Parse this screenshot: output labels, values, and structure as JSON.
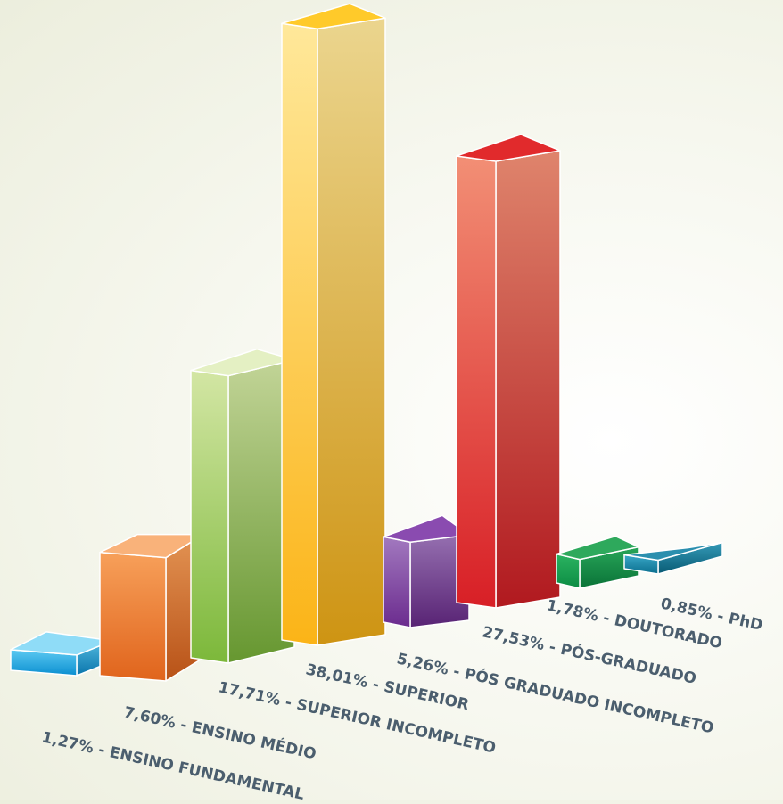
{
  "chart_data": {
    "type": "bar",
    "title": "",
    "xlabel": "",
    "ylabel": "",
    "legend": "none",
    "grid": false,
    "ylim": [
      0,
      40
    ],
    "categories": [
      "ENSINO FUNDAMENTAL",
      "ENSINO MÉDIO",
      "SUPERIOR INCOMPLETO",
      "SUPERIOR",
      "PÓS GRADUADO INCOMPLETO",
      "PÓS-GRADUADO",
      "DOUTORADO",
      "PhD"
    ],
    "values": [
      1.27,
      7.6,
      17.71,
      38.01,
      5.26,
      27.53,
      1.78,
      0.85
    ],
    "labels": [
      "1,27% - ENSINO FUNDAMENTAL",
      "7,60% - ENSINO MÉDIO",
      "17,71% - SUPERIOR INCOMPLETO",
      "38,01% - SUPERIOR",
      "5,26% - PÓS GRADUADO INCOMPLETO",
      "27,53% - PÓS-GRADUADO",
      "1,78% - DOUTORADO",
      "0,85% - PhD"
    ],
    "colors": [
      {
        "front_top": "#5ccaf2",
        "front_bottom": "#0a8ed0",
        "top": "#8fdcf7"
      },
      {
        "front_top": "#f7a05a",
        "front_bottom": "#e0641c",
        "top": "#f9b27a"
      },
      {
        "front_top": "#d3e6a4",
        "front_bottom": "#7cb83a",
        "top": "#e4f0c3"
      },
      {
        "front_top": "#ffe89a",
        "front_bottom": "#fbb417",
        "top": "#ffca2a"
      },
      {
        "front_top": "#a279bf",
        "front_bottom": "#6b2b8e",
        "top": "#8a4bb0"
      },
      {
        "front_top": "#f28f75",
        "front_bottom": "#d81f26",
        "top": "#e12a2c"
      },
      {
        "front_top": "#2bb361",
        "front_bottom": "#0c8c43",
        "top": "#2ea95c"
      },
      {
        "front_top": "#3aa8c8",
        "front_bottom": "#0a6e8e",
        "top": "#2b8fae"
      }
    ]
  }
}
